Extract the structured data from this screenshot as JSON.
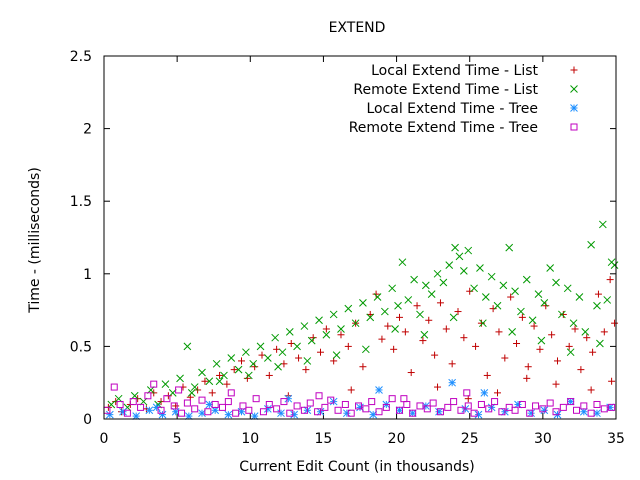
{
  "chart_data": {
    "type": "scatter",
    "title": "EXTEND",
    "xlabel": "Current Edit Count (in thousands)",
    "ylabel": "Time - (milliseconds)",
    "xlim": [
      0,
      35
    ],
    "ylim": [
      0,
      2.5
    ],
    "xticks": [
      "0",
      "5",
      "10",
      "15",
      "20",
      "25",
      "30",
      "35"
    ],
    "yticks": [
      "0",
      "0.5",
      "1",
      "1.5",
      "2",
      "2.5"
    ],
    "grid": false,
    "legend_position": "top-right",
    "colors": {
      "local_list": "#c00000",
      "remote_list": "#009900",
      "local_tree": "#1e8fff",
      "remote_tree": "#c000c0"
    },
    "series": [
      {
        "name": "Local Extend Time - List",
        "marker": "plus",
        "color": "#c00000",
        "points": [
          [
            0.3,
            0.08
          ],
          [
            0.8,
            0.12
          ],
          [
            1.2,
            0.05
          ],
          [
            1.8,
            0.1
          ],
          [
            2.3,
            0.14
          ],
          [
            2.9,
            0.07
          ],
          [
            3.4,
            0.18
          ],
          [
            3.9,
            0.12
          ],
          [
            4.4,
            0.16
          ],
          [
            4.9,
            0.09
          ],
          [
            5.4,
            0.22
          ],
          [
            5.9,
            0.15
          ],
          [
            6.4,
            0.2
          ],
          [
            6.9,
            0.26
          ],
          [
            7.4,
            0.18
          ],
          [
            7.9,
            0.3
          ],
          [
            8.4,
            0.24
          ],
          [
            8.9,
            0.34
          ],
          [
            9.4,
            0.4
          ],
          [
            9.8,
            0.28
          ],
          [
            10.3,
            0.36
          ],
          [
            10.8,
            0.44
          ],
          [
            11.3,
            0.3
          ],
          [
            11.8,
            0.48
          ],
          [
            12.3,
            0.38
          ],
          [
            12.8,
            0.52
          ],
          [
            13.3,
            0.42
          ],
          [
            13.8,
            0.34
          ],
          [
            14.3,
            0.56
          ],
          [
            14.8,
            0.46
          ],
          [
            15.2,
            0.62
          ],
          [
            15.7,
            0.4
          ],
          [
            16.2,
            0.58
          ],
          [
            16.7,
            0.5
          ],
          [
            17.2,
            0.66
          ],
          [
            17.7,
            0.36
          ],
          [
            18.2,
            0.72
          ],
          [
            18.6,
            0.86
          ],
          [
            19.0,
            0.55
          ],
          [
            19.4,
            0.64
          ],
          [
            19.8,
            0.48
          ],
          [
            20.2,
            0.7
          ],
          [
            20.6,
            0.6
          ],
          [
            21.0,
            0.32
          ],
          [
            21.4,
            0.78
          ],
          [
            21.8,
            0.54
          ],
          [
            22.2,
            0.68
          ],
          [
            22.6,
            0.44
          ],
          [
            23.0,
            0.8
          ],
          [
            23.4,
            0.62
          ],
          [
            23.8,
            0.38
          ],
          [
            24.2,
            0.74
          ],
          [
            24.6,
            0.56
          ],
          [
            25.0,
            0.88
          ],
          [
            25.4,
            0.5
          ],
          [
            25.8,
            0.66
          ],
          [
            26.2,
            0.3
          ],
          [
            26.6,
            0.76
          ],
          [
            27.0,
            0.6
          ],
          [
            27.4,
            0.42
          ],
          [
            27.8,
            0.84
          ],
          [
            28.2,
            0.52
          ],
          [
            28.6,
            0.7
          ],
          [
            29.0,
            0.36
          ],
          [
            29.4,
            0.64
          ],
          [
            29.8,
            0.48
          ],
          [
            30.2,
            0.78
          ],
          [
            30.6,
            0.58
          ],
          [
            31.0,
            0.4
          ],
          [
            31.4,
            0.72
          ],
          [
            31.8,
            0.5
          ],
          [
            32.2,
            0.62
          ],
          [
            32.6,
            0.34
          ],
          [
            33.0,
            0.56
          ],
          [
            33.4,
            0.46
          ],
          [
            33.8,
            0.86
          ],
          [
            34.2,
            0.6
          ],
          [
            34.6,
            0.96
          ],
          [
            34.9,
            0.66
          ],
          [
            34.7,
            0.26
          ],
          [
            22.8,
            0.22
          ],
          [
            26.9,
            0.18
          ],
          [
            30.9,
            0.24
          ],
          [
            16.9,
            0.2
          ],
          [
            12.6,
            0.16
          ],
          [
            28.9,
            0.28
          ],
          [
            24.9,
            0.14
          ],
          [
            33.3,
            0.2
          ]
        ]
      },
      {
        "name": "Remote Extend Time - List",
        "marker": "cross",
        "color": "#009900",
        "points": [
          [
            0.5,
            0.1
          ],
          [
            1.0,
            0.14
          ],
          [
            1.6,
            0.08
          ],
          [
            2.1,
            0.16
          ],
          [
            2.7,
            0.12
          ],
          [
            3.2,
            0.2
          ],
          [
            3.7,
            0.1
          ],
          [
            4.2,
            0.24
          ],
          [
            4.7,
            0.18
          ],
          [
            5.2,
            0.28
          ],
          [
            5.7,
            0.5
          ],
          [
            6.2,
            0.22
          ],
          [
            6.7,
            0.32
          ],
          [
            7.2,
            0.26
          ],
          [
            7.7,
            0.38
          ],
          [
            8.2,
            0.3
          ],
          [
            8.7,
            0.42
          ],
          [
            9.2,
            0.34
          ],
          [
            9.7,
            0.46
          ],
          [
            10.2,
            0.38
          ],
          [
            10.7,
            0.5
          ],
          [
            11.2,
            0.42
          ],
          [
            11.7,
            0.56
          ],
          [
            12.2,
            0.46
          ],
          [
            12.7,
            0.6
          ],
          [
            13.2,
            0.5
          ],
          [
            13.7,
            0.64
          ],
          [
            14.2,
            0.54
          ],
          [
            14.7,
            0.68
          ],
          [
            15.2,
            0.58
          ],
          [
            15.7,
            0.72
          ],
          [
            16.2,
            0.62
          ],
          [
            16.7,
            0.76
          ],
          [
            17.2,
            0.66
          ],
          [
            17.7,
            0.8
          ],
          [
            18.2,
            0.7
          ],
          [
            18.7,
            0.84
          ],
          [
            19.2,
            0.74
          ],
          [
            19.7,
            0.9
          ],
          [
            20.1,
            0.78
          ],
          [
            20.4,
            1.08
          ],
          [
            20.8,
            0.82
          ],
          [
            21.2,
            0.96
          ],
          [
            21.6,
            0.72
          ],
          [
            22.0,
            0.92
          ],
          [
            22.4,
            0.86
          ],
          [
            22.8,
            1.0
          ],
          [
            23.2,
            0.94
          ],
          [
            23.6,
            1.06
          ],
          [
            24.0,
            1.18
          ],
          [
            24.3,
            1.12
          ],
          [
            24.6,
            1.02
          ],
          [
            24.9,
            1.16
          ],
          [
            25.3,
            0.9
          ],
          [
            25.7,
            1.04
          ],
          [
            26.1,
            0.84
          ],
          [
            26.5,
            0.98
          ],
          [
            26.9,
            0.78
          ],
          [
            27.3,
            0.92
          ],
          [
            27.7,
            1.18
          ],
          [
            28.1,
            0.88
          ],
          [
            28.5,
            0.74
          ],
          [
            28.9,
            0.96
          ],
          [
            29.3,
            0.68
          ],
          [
            29.7,
            0.86
          ],
          [
            30.1,
            0.8
          ],
          [
            30.5,
            1.04
          ],
          [
            30.9,
            0.94
          ],
          [
            31.3,
            0.72
          ],
          [
            31.7,
            0.9
          ],
          [
            32.1,
            0.66
          ],
          [
            32.5,
            0.84
          ],
          [
            32.9,
            0.6
          ],
          [
            33.3,
            1.2
          ],
          [
            33.7,
            0.78
          ],
          [
            34.1,
            1.34
          ],
          [
            34.4,
            0.82
          ],
          [
            34.7,
            1.08
          ],
          [
            34.9,
            1.06
          ],
          [
            29.9,
            0.54
          ],
          [
            27.9,
            0.6
          ],
          [
            25.9,
            0.66
          ],
          [
            23.9,
            0.7
          ],
          [
            21.9,
            0.58
          ],
          [
            19.9,
            0.62
          ],
          [
            17.9,
            0.48
          ],
          [
            15.9,
            0.44
          ],
          [
            13.9,
            0.4
          ],
          [
            11.9,
            0.36
          ],
          [
            9.9,
            0.3
          ],
          [
            7.9,
            0.26
          ],
          [
            6.0,
            0.18
          ],
          [
            31.9,
            0.46
          ],
          [
            33.9,
            0.52
          ]
        ]
      },
      {
        "name": "Local Extend Time - Tree",
        "marker": "star",
        "color": "#1e8fff",
        "points": [
          [
            0.4,
            0.03
          ],
          [
            1.3,
            0.05
          ],
          [
            2.2,
            0.02
          ],
          [
            3.1,
            0.06
          ],
          [
            4.0,
            0.03
          ],
          [
            4.9,
            0.05
          ],
          [
            5.8,
            0.02
          ],
          [
            6.7,
            0.04
          ],
          [
            7.6,
            0.06
          ],
          [
            8.5,
            0.03
          ],
          [
            9.4,
            0.05
          ],
          [
            10.3,
            0.02
          ],
          [
            11.2,
            0.07
          ],
          [
            12.1,
            0.04
          ],
          [
            13.0,
            0.03
          ],
          [
            13.9,
            0.06
          ],
          [
            14.8,
            0.05
          ],
          [
            15.7,
            0.12
          ],
          [
            16.6,
            0.04
          ],
          [
            17.5,
            0.08
          ],
          [
            18.4,
            0.03
          ],
          [
            19.3,
            0.1
          ],
          [
            20.2,
            0.06
          ],
          [
            21.1,
            0.04
          ],
          [
            22.0,
            0.09
          ],
          [
            22.9,
            0.05
          ],
          [
            23.8,
            0.25
          ],
          [
            24.7,
            0.07
          ],
          [
            25.6,
            0.03
          ],
          [
            26.5,
            0.08
          ],
          [
            27.4,
            0.05
          ],
          [
            28.3,
            0.1
          ],
          [
            29.2,
            0.04
          ],
          [
            30.1,
            0.06
          ],
          [
            31.0,
            0.03
          ],
          [
            31.9,
            0.12
          ],
          [
            32.8,
            0.05
          ],
          [
            33.7,
            0.04
          ],
          [
            34.6,
            0.08
          ],
          [
            18.8,
            0.2
          ],
          [
            26.0,
            0.18
          ],
          [
            12.6,
            0.14
          ],
          [
            7.2,
            0.1
          ],
          [
            3.6,
            0.08
          ]
        ]
      },
      {
        "name": "Remote Extend Time - Tree",
        "marker": "square",
        "color": "#c000c0",
        "points": [
          [
            0.2,
            0.06
          ],
          [
            0.7,
            0.22
          ],
          [
            1.1,
            0.1
          ],
          [
            1.6,
            0.04
          ],
          [
            2.0,
            0.12
          ],
          [
            2.5,
            0.08
          ],
          [
            3.0,
            0.16
          ],
          [
            3.4,
            0.24
          ],
          [
            3.9,
            0.06
          ],
          [
            4.3,
            0.14
          ],
          [
            4.8,
            0.09
          ],
          [
            5.3,
            0.04
          ],
          [
            5.7,
            0.11
          ],
          [
            6.2,
            0.07
          ],
          [
            6.7,
            0.13
          ],
          [
            7.1,
            0.05
          ],
          [
            7.6,
            0.1
          ],
          [
            8.1,
            0.08
          ],
          [
            8.5,
            0.12
          ],
          [
            9.0,
            0.04
          ],
          [
            9.5,
            0.09
          ],
          [
            9.9,
            0.06
          ],
          [
            10.4,
            0.14
          ],
          [
            10.9,
            0.05
          ],
          [
            11.3,
            0.1
          ],
          [
            11.8,
            0.07
          ],
          [
            12.3,
            0.12
          ],
          [
            12.7,
            0.04
          ],
          [
            13.2,
            0.09
          ],
          [
            13.7,
            0.06
          ],
          [
            14.1,
            0.11
          ],
          [
            14.6,
            0.05
          ],
          [
            15.1,
            0.08
          ],
          [
            15.5,
            0.13
          ],
          [
            16.0,
            0.06
          ],
          [
            16.5,
            0.1
          ],
          [
            16.9,
            0.04
          ],
          [
            17.4,
            0.09
          ],
          [
            17.9,
            0.07
          ],
          [
            18.3,
            0.12
          ],
          [
            18.8,
            0.05
          ],
          [
            19.3,
            0.08
          ],
          [
            19.7,
            0.14
          ],
          [
            20.2,
            0.06
          ],
          [
            20.7,
            0.1
          ],
          [
            21.1,
            0.04
          ],
          [
            21.6,
            0.09
          ],
          [
            22.1,
            0.07
          ],
          [
            22.5,
            0.11
          ],
          [
            23.0,
            0.05
          ],
          [
            23.5,
            0.08
          ],
          [
            23.9,
            0.12
          ],
          [
            24.4,
            0.06
          ],
          [
            24.9,
            0.09
          ],
          [
            25.3,
            0.04
          ],
          [
            25.8,
            0.1
          ],
          [
            26.3,
            0.07
          ],
          [
            26.7,
            0.12
          ],
          [
            27.2,
            0.05
          ],
          [
            27.7,
            0.08
          ],
          [
            28.1,
            0.06
          ],
          [
            28.6,
            0.1
          ],
          [
            29.1,
            0.04
          ],
          [
            29.5,
            0.09
          ],
          [
            30.0,
            0.07
          ],
          [
            30.5,
            0.11
          ],
          [
            30.9,
            0.05
          ],
          [
            31.4,
            0.08
          ],
          [
            31.9,
            0.12
          ],
          [
            32.3,
            0.06
          ],
          [
            32.8,
            0.09
          ],
          [
            33.3,
            0.04
          ],
          [
            33.7,
            0.1
          ],
          [
            34.2,
            0.07
          ],
          [
            34.7,
            0.08
          ],
          [
            14.7,
            0.16
          ],
          [
            8.7,
            0.18
          ],
          [
            24.8,
            0.18
          ],
          [
            20.5,
            0.14
          ],
          [
            5.1,
            0.2
          ]
        ]
      }
    ]
  }
}
